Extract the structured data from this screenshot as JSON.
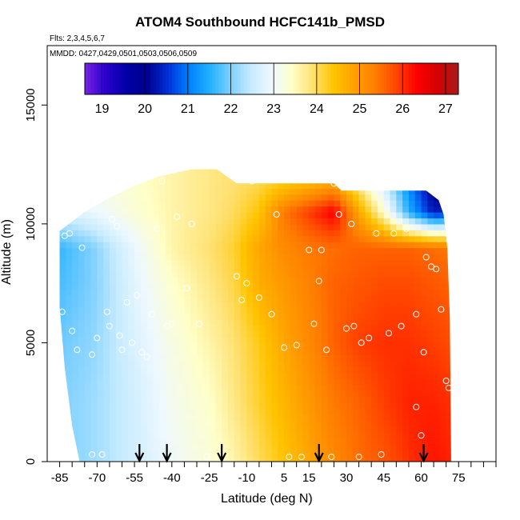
{
  "chart_data": {
    "type": "heatmap",
    "title": "ATOM4 Southbound HCFC141b_PMSD",
    "flights_label": "Flts: 2,3,4,5,6,7",
    "dates_label": "MMDD: 0427,0429,0501,0503,0506,0509",
    "xlabel": "Latitude (deg N)",
    "ylabel": "Altitude (m)",
    "xlim": [
      -90,
      90
    ],
    "ylim": [
      0,
      17500
    ],
    "x_ticks": [
      -85,
      -70,
      -55,
      -40,
      -25,
      -10,
      5,
      15,
      30,
      45,
      60,
      75
    ],
    "x_minor_ticks": [
      -80,
      -75,
      -65,
      -60,
      -50,
      -45,
      -35,
      -30,
      -20,
      -15,
      -5,
      0,
      10,
      20,
      25,
      35,
      40,
      50,
      55,
      65,
      70,
      80,
      85,
      90
    ],
    "y_ticks": [
      0,
      5000,
      10000,
      15000
    ],
    "colorbar": {
      "ticks": [
        19,
        20,
        21,
        22,
        23,
        24,
        25,
        26,
        27
      ],
      "range": [
        18.6,
        27.3
      ],
      "colors": [
        "#7a22e6",
        "#2a00cc",
        "#0000a6",
        "#00008e",
        "#0030d8",
        "#0080ff",
        "#20b0ff",
        "#7ccfff",
        "#c6ebff",
        "#eef8ff",
        "#ffffc8",
        "#ffe070",
        "#ffc400",
        "#ffa000",
        "#ff7d00",
        "#ff4500",
        "#ff0000",
        "#d40000",
        "#a81b1b"
      ]
    },
    "field": {
      "lat_nodes": [
        -85,
        -72,
        -55,
        -40,
        -25,
        -15,
        -5,
        5,
        15,
        25,
        35,
        45,
        55,
        65,
        72
      ],
      "alt_nodes": [
        0,
        2500,
        5000,
        7500,
        9000,
        10500,
        12000
      ],
      "values": [
        [
          22.0,
          22.2,
          22.6,
          23.0,
          23.3,
          23.6,
          24.0,
          24.4,
          24.8,
          25.2,
          25.5,
          25.7,
          26.0,
          26.2,
          26.1
        ],
        [
          22.0,
          22.2,
          22.6,
          23.1,
          23.4,
          23.8,
          24.2,
          24.6,
          25.0,
          25.4,
          25.6,
          25.9,
          26.1,
          26.1,
          26.0
        ],
        [
          21.9,
          22.1,
          22.7,
          23.2,
          23.6,
          23.9,
          24.3,
          24.8,
          25.2,
          25.6,
          25.9,
          26.0,
          26.0,
          25.9,
          25.8
        ],
        [
          21.7,
          22.0,
          22.8,
          23.4,
          23.8,
          24.1,
          24.7,
          25.0,
          25.3,
          25.6,
          25.7,
          25.8,
          25.8,
          25.7,
          25.6
        ],
        [
          21.6,
          22.0,
          22.9,
          23.6,
          23.9,
          24.2,
          24.8,
          25.2,
          25.4,
          25.5,
          25.6,
          25.6,
          25.6,
          25.5,
          25.4
        ],
        [
          22.6,
          22.9,
          23.3,
          23.6,
          23.8,
          24.0,
          24.4,
          25.4,
          25.9,
          26.4,
          24.8,
          23.4,
          21.5,
          20.3,
          20.5
        ],
        [
          23.1,
          23.2,
          23.4,
          23.6,
          23.8,
          23.9,
          24.0,
          24.1,
          24.3,
          24.5,
          23.5,
          22.4,
          21.0,
          19.8,
          19.7
        ]
      ]
    },
    "top_boundary": [
      {
        "lat": -85,
        "alt": 9700
      },
      {
        "lat": -75,
        "alt": 10500
      },
      {
        "lat": -65,
        "alt": 11100
      },
      {
        "lat": -55,
        "alt": 11600
      },
      {
        "lat": -45,
        "alt": 12000
      },
      {
        "lat": -32,
        "alt": 12300
      },
      {
        "lat": -22,
        "alt": 12300
      },
      {
        "lat": -14,
        "alt": 11700
      },
      {
        "lat": 0,
        "alt": 11700
      },
      {
        "lat": 12,
        "alt": 11700
      },
      {
        "lat": 25,
        "alt": 11700
      },
      {
        "lat": 28,
        "alt": 11400
      },
      {
        "lat": 40,
        "alt": 11400
      },
      {
        "lat": 52,
        "alt": 11400
      },
      {
        "lat": 62,
        "alt": 11400
      },
      {
        "lat": 67,
        "alt": 11000
      },
      {
        "lat": 69,
        "alt": 10400
      },
      {
        "lat": 70.5,
        "alt": 9000
      },
      {
        "lat": 71.5,
        "alt": 6000
      },
      {
        "lat": 72,
        "alt": 0
      }
    ],
    "left_boundary": [
      {
        "lat": -77,
        "alt": 0
      },
      {
        "lat": -80,
        "alt": 1500
      },
      {
        "lat": -83,
        "alt": 4000
      },
      {
        "lat": -85,
        "alt": 6500
      },
      {
        "lat": -85,
        "alt": 9700
      }
    ],
    "observations": [
      {
        "lat": -84,
        "alt": 6300
      },
      {
        "lat": -83,
        "alt": 9500
      },
      {
        "lat": -81,
        "alt": 9600
      },
      {
        "lat": -80,
        "alt": 5500
      },
      {
        "lat": -78,
        "alt": 4700
      },
      {
        "lat": -76,
        "alt": 9000
      },
      {
        "lat": -72,
        "alt": 4500
      },
      {
        "lat": -70,
        "alt": 5200
      },
      {
        "lat": -72,
        "alt": 300
      },
      {
        "lat": -68,
        "alt": 300
      },
      {
        "lat": -66,
        "alt": 6300
      },
      {
        "lat": -65,
        "alt": 5700
      },
      {
        "lat": -64,
        "alt": 10200
      },
      {
        "lat": -62,
        "alt": 9900
      },
      {
        "lat": -61,
        "alt": 5300
      },
      {
        "lat": -60,
        "alt": 4700
      },
      {
        "lat": -58,
        "alt": 6700
      },
      {
        "lat": -56,
        "alt": 5000
      },
      {
        "lat": -54,
        "alt": 7000
      },
      {
        "lat": -52,
        "alt": 4600
      },
      {
        "lat": -50,
        "alt": 4400
      },
      {
        "lat": -48,
        "alt": 6200
      },
      {
        "lat": -46,
        "alt": 9800
      },
      {
        "lat": -44,
        "alt": 11800
      },
      {
        "lat": -42,
        "alt": 5700
      },
      {
        "lat": -40,
        "alt": 5800
      },
      {
        "lat": -38,
        "alt": 10300
      },
      {
        "lat": -34,
        "alt": 7300
      },
      {
        "lat": -32,
        "alt": 10000
      },
      {
        "lat": -29,
        "alt": 5800
      },
      {
        "lat": -26,
        "alt": 200
      },
      {
        "lat": -20,
        "alt": 200
      },
      {
        "lat": -17,
        "alt": 12300
      },
      {
        "lat": -14,
        "alt": 7800
      },
      {
        "lat": -12,
        "alt": 6800
      },
      {
        "lat": -10,
        "alt": 7500
      },
      {
        "lat": -8,
        "alt": 11800
      },
      {
        "lat": -5,
        "alt": 6900
      },
      {
        "lat": 0,
        "alt": 6200
      },
      {
        "lat": 2,
        "alt": 10400
      },
      {
        "lat": 5,
        "alt": 4800
      },
      {
        "lat": 7,
        "alt": 200
      },
      {
        "lat": 10,
        "alt": 4900
      },
      {
        "lat": 12,
        "alt": 200
      },
      {
        "lat": 15,
        "alt": 8900
      },
      {
        "lat": 17,
        "alt": 5800
      },
      {
        "lat": 19,
        "alt": 7600
      },
      {
        "lat": 20,
        "alt": 8900
      },
      {
        "lat": 22,
        "alt": 4700
      },
      {
        "lat": 24,
        "alt": 200
      },
      {
        "lat": 25,
        "alt": 11700
      },
      {
        "lat": 27,
        "alt": 10400
      },
      {
        "lat": 30,
        "alt": 5600
      },
      {
        "lat": 32,
        "alt": 10000
      },
      {
        "lat": 33,
        "alt": 5700
      },
      {
        "lat": 35,
        "alt": 200
      },
      {
        "lat": 36,
        "alt": 5000
      },
      {
        "lat": 39,
        "alt": 5200
      },
      {
        "lat": 42,
        "alt": 9600
      },
      {
        "lat": 44,
        "alt": 300
      },
      {
        "lat": 47,
        "alt": 5400
      },
      {
        "lat": 49,
        "alt": 9600
      },
      {
        "lat": 52,
        "alt": 5700
      },
      {
        "lat": 54,
        "alt": 9800
      },
      {
        "lat": 58,
        "alt": 6200
      },
      {
        "lat": 58,
        "alt": 2300
      },
      {
        "lat": 60,
        "alt": 1100
      },
      {
        "lat": 61,
        "alt": 4600
      },
      {
        "lat": 62,
        "alt": 8600
      },
      {
        "lat": 64,
        "alt": 8200
      },
      {
        "lat": 66,
        "alt": 8100
      },
      {
        "lat": 68,
        "alt": 6400
      },
      {
        "lat": 70,
        "alt": 3400
      },
      {
        "lat": 71,
        "alt": 3100
      }
    ],
    "arrow_latitudes": [
      -53,
      -42,
      -20,
      19,
      61
    ]
  }
}
